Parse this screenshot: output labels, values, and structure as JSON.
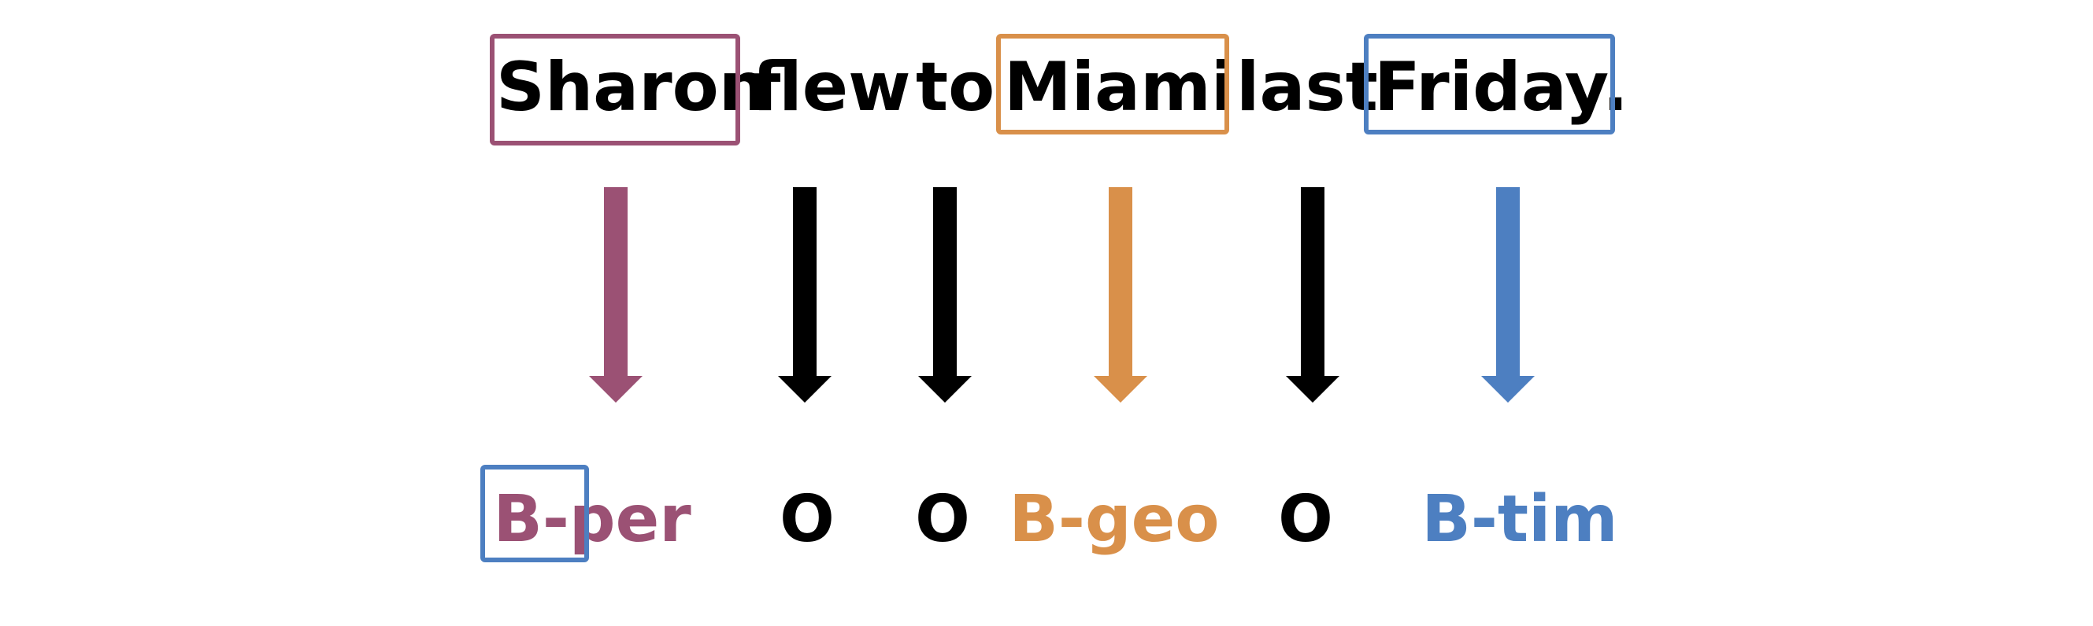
{
  "sentence": {
    "words": [
      {
        "text": "Sharon",
        "boxed": true,
        "color": "#9b5174"
      },
      {
        "text": "flew",
        "boxed": false,
        "color": "#000000"
      },
      {
        "text": "to",
        "boxed": false,
        "color": "#000000"
      },
      {
        "text": "Miami",
        "boxed": true,
        "color": "#d9904a"
      },
      {
        "text": "last",
        "boxed": false,
        "color": "#000000"
      },
      {
        "text": "Friday.",
        "boxed": true,
        "color": "#4d7fc1"
      }
    ]
  },
  "arrows": [
    {
      "color": "#9b5174"
    },
    {
      "color": "#000000"
    },
    {
      "color": "#000000"
    },
    {
      "color": "#d9904a"
    },
    {
      "color": "#000000"
    },
    {
      "color": "#4d7fc1"
    }
  ],
  "tags": [
    {
      "prefix": "B-",
      "suffix": "per",
      "color": "#9b5174"
    },
    {
      "prefix": "",
      "suffix": "O",
      "color": "#000000"
    },
    {
      "prefix": "",
      "suffix": "O",
      "color": "#000000"
    },
    {
      "prefix": "",
      "suffix": "B-geo",
      "color": "#d9904a"
    },
    {
      "prefix": "",
      "suffix": "O",
      "color": "#000000"
    },
    {
      "prefix": "",
      "suffix": "B-tim",
      "color": "#4d7fc1"
    }
  ],
  "highlight": {
    "color": "#4d7fc1",
    "target": "B-"
  }
}
